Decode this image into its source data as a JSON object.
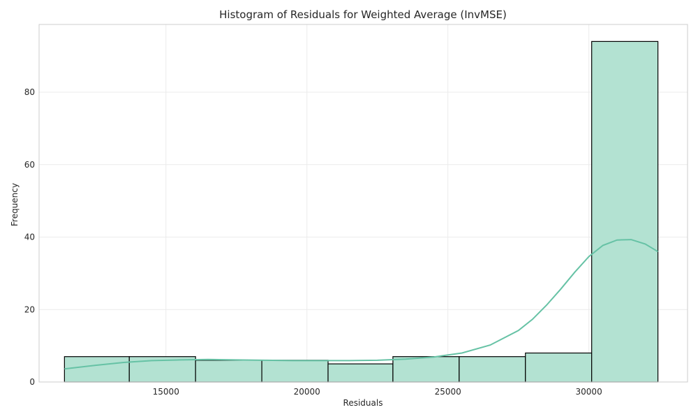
{
  "chart_data": {
    "type": "bar",
    "title": "Histogram of Residuals for Weighted Average (InvMSE)",
    "xlabel": "Residuals",
    "ylabel": "Frequency",
    "xlim": [
      10500,
      33500
    ],
    "ylim": [
      0,
      98.7
    ],
    "xticks": [
      15000,
      20000,
      25000,
      30000
    ],
    "yticks": [
      0,
      20,
      40,
      60,
      80
    ],
    "grid": true,
    "bins": [
      {
        "x0": 11400,
        "x1": 13700,
        "count": 7
      },
      {
        "x0": 13700,
        "x1": 16050,
        "count": 7
      },
      {
        "x0": 16050,
        "x1": 18400,
        "count": 6
      },
      {
        "x0": 18400,
        "x1": 20750,
        "count": 6
      },
      {
        "x0": 20750,
        "x1": 23050,
        "count": 5
      },
      {
        "x0": 23050,
        "x1": 25400,
        "count": 7
      },
      {
        "x0": 25400,
        "x1": 27750,
        "count": 7
      },
      {
        "x0": 27750,
        "x1": 30100,
        "count": 8
      },
      {
        "x0": 30100,
        "x1": 32450,
        "count": 94
      }
    ],
    "kde": {
      "x": [
        11400,
        12500,
        13500,
        14500,
        15500,
        16500,
        17500,
        18500,
        19500,
        20500,
        21500,
        22500,
        23500,
        24500,
        25500,
        26500,
        27500,
        28000,
        28500,
        29000,
        29500,
        30000,
        30500,
        31000,
        31500,
        32000,
        32450
      ],
      "y": [
        3.6,
        4.6,
        5.4,
        5.9,
        6.1,
        6.2,
        6.1,
        6.0,
        5.9,
        5.9,
        5.9,
        6.0,
        6.3,
        6.9,
        8.0,
        10.2,
        14.2,
        17.3,
        21.2,
        25.6,
        30.3,
        34.6,
        37.7,
        39.2,
        39.3,
        38.1,
        36.0
      ]
    },
    "colors": {
      "bar_fill": "#b3e2d2",
      "bar_edge": "#000000",
      "kde_line": "#66c2a5",
      "grid": "#ebebeb",
      "frame": "#cccccc"
    }
  }
}
